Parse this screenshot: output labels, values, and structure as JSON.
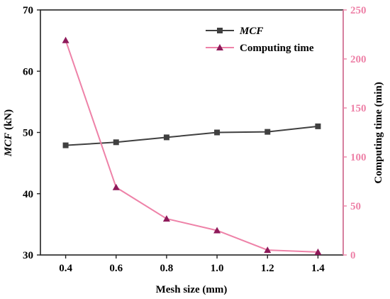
{
  "chart_data": {
    "type": "line",
    "xlabel": "Mesh size (mm)",
    "ylabel_left": "MCF (kN)",
    "ylabel_left_main": "MCF",
    "ylabel_left_unit": " (kN)",
    "ylabel_right": "Computing time (min)",
    "x": [
      0.4,
      0.6,
      0.8,
      1.0,
      1.2,
      1.4
    ],
    "x_ticks": [
      "0.4",
      "0.6",
      "0.8",
      "1.0",
      "1.2",
      "1.4"
    ],
    "xlim": [
      0.3,
      1.5
    ],
    "ylim_left": [
      30,
      70
    ],
    "ylim_right": [
      0,
      250
    ],
    "yticks_left": [
      "30",
      "40",
      "50",
      "60",
      "70"
    ],
    "yticks_right": [
      "0",
      "50",
      "100",
      "150",
      "200",
      "250"
    ],
    "legend_position": "top-right",
    "series": [
      {
        "name": "MCF",
        "axis": "left",
        "marker": "square",
        "color": "#404040",
        "values": [
          47.9,
          48.4,
          49.2,
          50.0,
          50.1,
          51.0
        ]
      },
      {
        "name": "Computing time",
        "axis": "right",
        "marker": "triangle",
        "color": "#ee82a8",
        "values": [
          219,
          69,
          37,
          25,
          5,
          3
        ]
      }
    ],
    "right_axis_color": "#ee82a8",
    "grid": false
  }
}
